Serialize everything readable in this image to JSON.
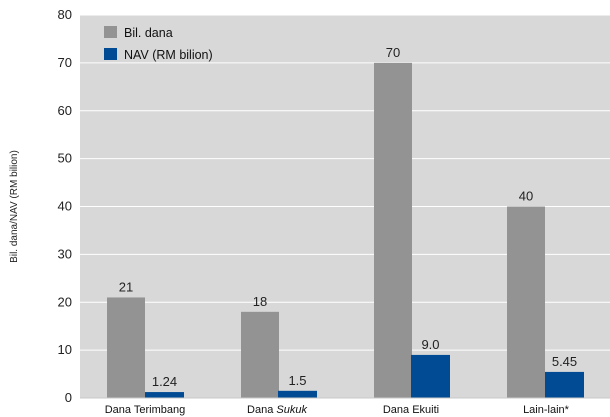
{
  "chart_data": {
    "type": "bar",
    "title": "",
    "xlabel": "",
    "ylabel": "Bil. dana/NAV (RM bilion)",
    "ylim": [
      0,
      80
    ],
    "yticks": [
      0,
      10,
      20,
      30,
      40,
      50,
      60,
      70,
      80
    ],
    "grid": true,
    "legend_position": "top-left",
    "categories": [
      {
        "prefix": "Dana Terimbang",
        "italic": ""
      },
      {
        "prefix": "Dana ",
        "italic": "Sukuk"
      },
      {
        "prefix": "Dana Ekuiti",
        "italic": ""
      },
      {
        "prefix": "Lain-lain*",
        "italic": ""
      }
    ],
    "series": [
      {
        "name": "Bil. dana",
        "color": "#939393",
        "values": [
          21,
          18,
          70,
          40
        ],
        "labels": [
          "21",
          "18",
          "70",
          "40"
        ]
      },
      {
        "name": "NAV (RM bilion)",
        "color": "#004b93",
        "values": [
          1.24,
          1.5,
          9.0,
          5.45
        ],
        "labels": [
          "1.24",
          "1.5",
          "9.0",
          "5.45"
        ]
      }
    ],
    "colors": {
      "plot_background": "#d8d8d8",
      "grid": "#ffffff"
    }
  }
}
